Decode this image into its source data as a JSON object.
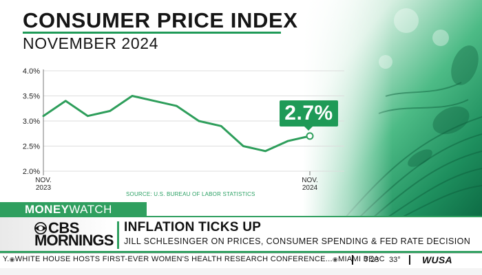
{
  "header": {
    "title": "CONSUMER PRICE INDEX",
    "subtitle": "NOVEMBER 2024"
  },
  "chart_data": {
    "type": "line",
    "title": "CONSUMER PRICE INDEX",
    "subtitle": "NOVEMBER 2024",
    "xlabel": "",
    "ylabel": "",
    "ylim": [
      2.0,
      4.0
    ],
    "yticks": [
      "4.0%",
      "3.5%",
      "3.0%",
      "2.5%",
      "2.0%"
    ],
    "ytick_values": [
      4.0,
      3.5,
      3.0,
      2.5,
      2.0
    ],
    "x_tick_labels": [
      {
        "line1": "NOV.",
        "line2": "2023",
        "index": 0
      },
      {
        "line1": "NOV.",
        "line2": "2024",
        "index": 12
      }
    ],
    "grid": true,
    "series": [
      {
        "values": [
          3.1,
          3.4,
          3.1,
          3.2,
          3.5,
          3.4,
          3.3,
          3.0,
          2.9,
          2.5,
          2.4,
          2.6,
          2.7
        ]
      }
    ],
    "annotation": {
      "text": "2.7%",
      "index": 12
    },
    "source": "SOURCE: U.S. BUREAU OF LABOR STATISTICS"
  },
  "colors": {
    "accent": "#1f9a57",
    "line": "#2e9e5b",
    "grid": "#dcdcdc"
  },
  "lower_third": {
    "segment_bold": "MONEY",
    "segment_light": "WATCH",
    "brand_line1": "CBS",
    "brand_line2": "MORNINGS",
    "brand_icon": "cbs-eye-icon",
    "headline": "INFLATION TICKS UP",
    "subheadline": "JILL SCHLESINGER ON PRICES, CONSUMER SPENDING & FED RATE DECISION"
  },
  "ticker": {
    "lead_in": "Y.",
    "item1": "WHITE HOUSE HOSTS FIRST-EVER WOMEN'S HEALTH RESEARCH CONFERENCE...",
    "item2": "MIAMI BEAC",
    "time": "7:23",
    "temperature": "33°",
    "station": "WUSA"
  }
}
